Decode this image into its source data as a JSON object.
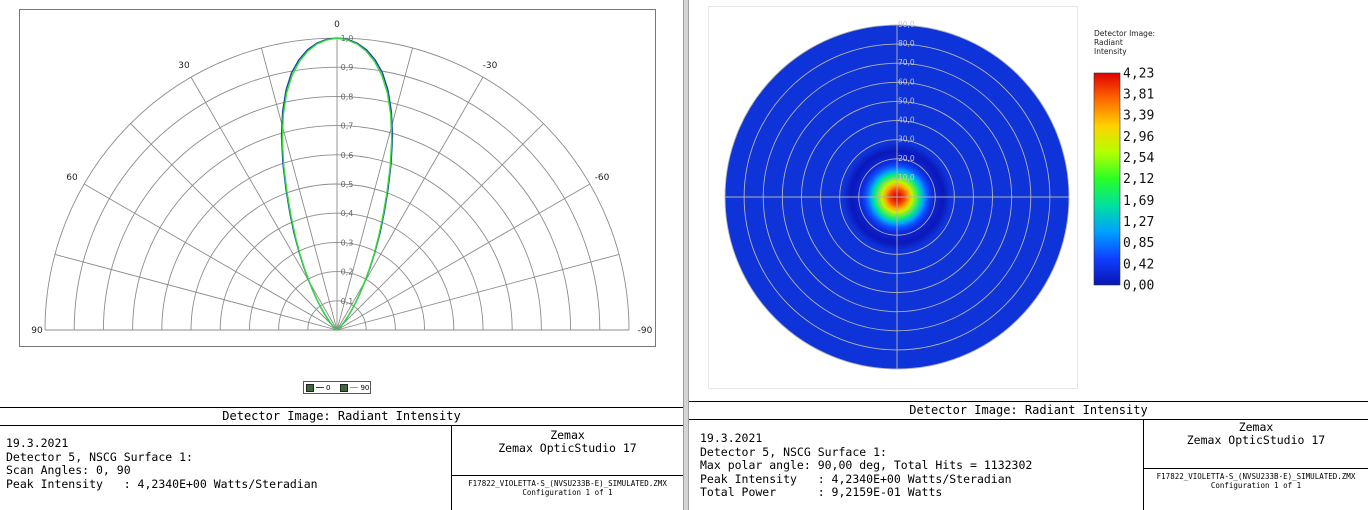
{
  "left_panel": {
    "footer": {
      "title": "Detector Image: Radiant Intensity",
      "info_lines": [
        "19.3.2021",
        "Detector 5, NSCG Surface 1:",
        "Scan Angles: 0, 90",
        "Peak Intensity   : 4,2340E+00 Watts/Steradian"
      ],
      "brand": [
        "Zemax",
        "Zemax OpticStudio 17"
      ],
      "file_lines": [
        "F17822_VIOLETTA-S_(NVSU233B-E)_SIMULATED.ZMX",
        "Configuration 1 of 1"
      ]
    }
  },
  "right_panel": {
    "footer": {
      "title": "Detector Image: Radiant Intensity",
      "info_lines": [
        "19.3.2021",
        "Detector 5, NSCG Surface 1:",
        "Max polar angle: 90,00 deg, Total Hits = 1132302",
        "Peak Intensity   : 4,2340E+00 Watts/Steradian",
        "Total Power      : 9,2159E-01 Watts"
      ],
      "brand": [
        "Zemax",
        "Zemax OpticStudio 17"
      ],
      "file_lines": [
        "F17822_VIOLETTA-S_(NVSU233B-E)_SIMULATED.ZMX",
        "Configuration 1 of 1"
      ]
    }
  },
  "chart_data": [
    {
      "type": "line",
      "coordinate_system": "polar-half",
      "angle_range_deg": [
        -90,
        90
      ],
      "angle_tick_labels": [
        "0",
        "30",
        "-30",
        "60",
        "-60",
        "90",
        "-90"
      ],
      "angle_ticks_deg": [
        0,
        30,
        -30,
        60,
        -60,
        90,
        -90
      ],
      "angle_grid_step_deg": 15,
      "radial_range": [
        0,
        1
      ],
      "radial_tick_labels": [
        "0,1",
        "0,2",
        "0,3",
        "0,4",
        "0,5",
        "0,6",
        "0,7",
        "0,8",
        "0,9",
        "1,0"
      ],
      "radial_ticks": [
        0.1,
        0.2,
        0.3,
        0.4,
        0.5,
        0.6,
        0.7,
        0.8,
        0.9,
        1.0
      ],
      "grid": true,
      "legend_position": "bottom-center",
      "series": [
        {
          "name": "0",
          "color": "#1a44a8",
          "angles_deg": [
            0,
            2,
            4,
            6,
            8,
            10,
            12,
            14,
            16,
            18,
            20,
            22,
            24,
            26,
            28,
            30,
            32,
            34,
            36,
            38,
            40,
            42,
            44,
            46,
            48,
            50,
            54,
            60,
            70,
            80,
            90
          ],
          "values": [
            1.0,
            0.996,
            0.985,
            0.965,
            0.935,
            0.895,
            0.84,
            0.77,
            0.69,
            0.6,
            0.51,
            0.43,
            0.36,
            0.295,
            0.24,
            0.19,
            0.15,
            0.117,
            0.09,
            0.068,
            0.05,
            0.037,
            0.027,
            0.019,
            0.013,
            0.009,
            0.005,
            0.002,
            0.0,
            0.0,
            0.0
          ]
        },
        {
          "name": "90",
          "color": "#33dd33",
          "angles_deg": [
            0,
            2,
            4,
            6,
            8,
            10,
            12,
            14,
            16,
            18,
            20,
            22,
            24,
            26,
            28,
            30,
            32,
            34,
            36,
            38,
            40,
            42,
            44,
            46,
            48,
            50,
            54,
            60,
            70,
            80,
            90
          ],
          "values": [
            1.0,
            0.994,
            0.982,
            0.96,
            0.928,
            0.885,
            0.83,
            0.76,
            0.68,
            0.59,
            0.5,
            0.42,
            0.35,
            0.29,
            0.235,
            0.187,
            0.148,
            0.115,
            0.088,
            0.066,
            0.049,
            0.036,
            0.026,
            0.018,
            0.012,
            0.008,
            0.004,
            0.002,
            0.0,
            0.0,
            0.0
          ]
        }
      ]
    },
    {
      "type": "heatmap",
      "coordinate_system": "polar-full",
      "radial_range_deg": [
        0,
        90
      ],
      "radial_tick_labels": [
        "10,0",
        "20,0",
        "30,0",
        "40,0",
        "50,0",
        "60,0",
        "70,0",
        "80,0",
        "90,0"
      ],
      "radial_ticks": [
        10,
        20,
        30,
        40,
        50,
        60,
        70,
        80,
        90
      ],
      "peak_value": 4.234,
      "profile_polar_deg": [
        0,
        2,
        4,
        6,
        8,
        10,
        12,
        14,
        16,
        18,
        20,
        24,
        28,
        90
      ],
      "profile_values": [
        4.23,
        4.1,
        3.85,
        3.4,
        2.8,
        2.2,
        1.6,
        1.05,
        0.65,
        0.35,
        0.18,
        0.05,
        0.0,
        0.0
      ],
      "colorbar": {
        "title_lines": [
          "Detector Image:",
          "Radiant",
          "Intensity"
        ],
        "labels": [
          "4,23",
          "3,81",
          "3,39",
          "2,96",
          "2,54",
          "2,12",
          "1,69",
          "1,27",
          "0,85",
          "0,42",
          "0,00"
        ],
        "values": [
          4.23,
          3.81,
          3.39,
          2.96,
          2.54,
          2.12,
          1.69,
          1.27,
          0.85,
          0.42,
          0.0
        ],
        "colors": [
          "#e00000",
          "#ff6a00",
          "#ffd200",
          "#b4ff00",
          "#28ff28",
          "#00e0a0",
          "#00a0ff",
          "#1040ff",
          "#0a14b4"
        ]
      },
      "background_color": "#0d33d9",
      "grid": true
    }
  ]
}
